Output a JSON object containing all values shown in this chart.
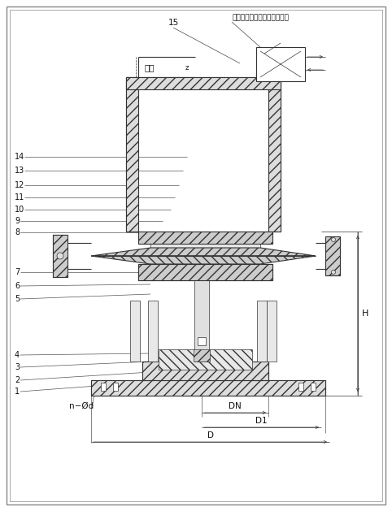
{
  "bg_color": "#f0f0f0",
  "line_color": "#333333",
  "hatch_color": "#555555",
  "text_color": "#111111",
  "label_top_right": "二位四通手动（电磁）换向阀",
  "label_water": "进水",
  "dim_label_H": "H",
  "dim_DN": "DN",
  "dim_D1": "D1",
  "dim_D": "D",
  "dim_nd": "n−Ød",
  "part_15": "15",
  "parts_left": [
    "1",
    "2",
    "3",
    "4",
    "5",
    "6",
    "7",
    "8",
    "9",
    "10",
    "11",
    "12",
    "13",
    "14"
  ]
}
